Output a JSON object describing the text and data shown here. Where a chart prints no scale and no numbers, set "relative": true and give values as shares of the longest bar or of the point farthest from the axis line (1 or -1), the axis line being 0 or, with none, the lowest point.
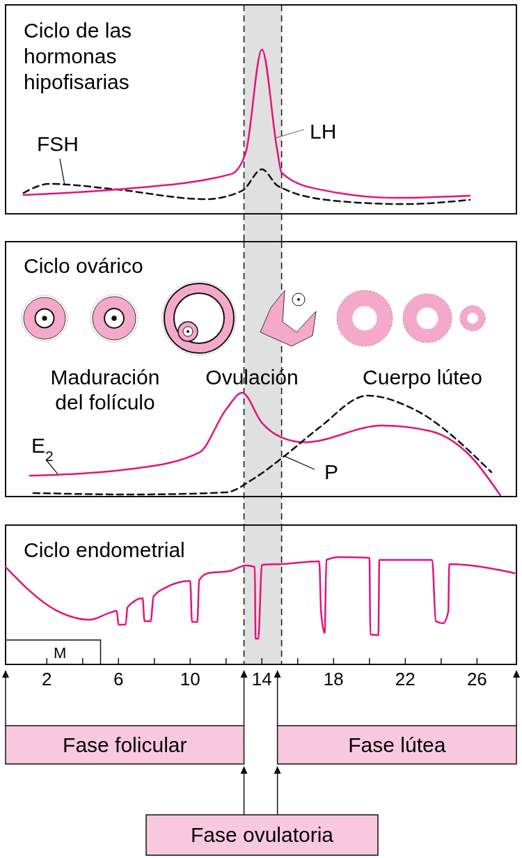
{
  "chart_data": [
    {
      "type": "line",
      "title": "Ciclo de las hormonas hipofisarias",
      "relative": true,
      "xlim": [
        -0.3,
        28.2
      ],
      "grid": false,
      "series": [
        {
          "name": "FSH",
          "color": "#111111",
          "line_style": "dashed",
          "x": [
            0.7,
            2.15,
            5.9,
            10.85,
            12.9,
            14,
            14.9,
            17.9,
            21.9,
            25.6
          ],
          "values": [
            0.127,
            0.182,
            0.148,
            0.089,
            0.14,
            0.271,
            0.169,
            0.081,
            0.059,
            0.085
          ]
        },
        {
          "name": "LH",
          "color": "#e5127d",
          "line_style": "solid",
          "x": [
            0.7,
            5.9,
            12.3,
            13.1,
            14,
            14.85,
            15.1,
            17,
            21.6,
            25.6
          ],
          "values": [
            0.114,
            0.148,
            0.242,
            0.373,
            1,
            0.39,
            0.25,
            0.153,
            0.097,
            0.11
          ]
        }
      ],
      "bands": [
        {
          "axis": "x",
          "from": 13,
          "to": 15.1,
          "color": "#e0e0e0"
        }
      ],
      "ref_lines": [
        {
          "axis": "x",
          "value": 13,
          "line_style": "dashed"
        },
        {
          "axis": "x",
          "value": 15.1,
          "line_style": "dashed"
        }
      ]
    },
    {
      "type": "line",
      "title": "Ciclo ovárico",
      "relative": true,
      "xlim": [
        -0.3,
        28.2
      ],
      "grid": false,
      "series": [
        {
          "name": "E$_{2}$",
          "color": "#e5127d",
          "line_style": "solid",
          "x": [
            1.05,
            6.8,
            10.5,
            12,
            12.9,
            14,
            15.1,
            16.4,
            20.7,
            23.4,
            25.6,
            27.3
          ],
          "values": [
            0.201,
            0.268,
            0.423,
            0.839,
            1,
            0.711,
            0.57,
            0.523,
            0.685,
            0.631,
            0.396,
            0.013
          ]
        },
        {
          "name": "P",
          "color": "#111111",
          "line_style": "dashed",
          "x": [
            1.25,
            6.8,
            12,
            13.5,
            15.3,
            17.2,
            19.9,
            22.5,
            26.8
          ],
          "values": [
            0.034,
            0.02,
            0.04,
            0.168,
            0.396,
            0.664,
            0.973,
            0.839,
            0.235
          ]
        }
      ],
      "annotations": [
        "Maduración del folículo",
        "Ovulación",
        "Cuerpo lúteo"
      ],
      "bands": [
        {
          "axis": "x",
          "from": 13,
          "to": 15.1,
          "color": "#e0e0e0"
        }
      ],
      "ref_lines": [
        {
          "axis": "x",
          "value": 13,
          "line_style": "dashed"
        },
        {
          "axis": "x",
          "value": 15.1,
          "line_style": "dashed"
        }
      ]
    },
    {
      "type": "line",
      "title": "Ciclo endometrial",
      "relative": true,
      "xlim": [
        -0.3,
        28.2
      ],
      "grid": false,
      "xticks": [
        2,
        {
          "value": 4,
          "label": null
        },
        6,
        {
          "value": 8,
          "label": null
        },
        10,
        {
          "value": 12,
          "label": null
        },
        14,
        {
          "value": 16,
          "label": null
        },
        18,
        {
          "value": 20,
          "label": null
        },
        22,
        {
          "value": 24,
          "label": null
        },
        26
      ],
      "series": [
        {
          "color": "#e5127d",
          "line_style": "solid",
          "x": [
            -0.3,
            2.5,
            4.4,
            5.5,
            5.9,
            6.0,
            6.4,
            6.5,
            7.35,
            7.45,
            7.8,
            7.95,
            8.6,
            10.0,
            10.1,
            10.4,
            10.5,
            11,
            12.2,
            13.1,
            13.6,
            13.65,
            13.8,
            14,
            15.1,
            17.2,
            17.3,
            17.5,
            17.6,
            18.3,
            20.0,
            20.05,
            20.5,
            20.55,
            23.5,
            23.7,
            24.1,
            24.4,
            24.45,
            28.1
          ],
          "values": [
            0.909,
            0.506,
            0.416,
            0.481,
            0.5,
            0.37,
            0.37,
            0.532,
            0.617,
            0.403,
            0.403,
            0.63,
            0.714,
            0.779,
            0.396,
            0.396,
            0.786,
            0.851,
            0.87,
            0.922,
            0.909,
            0.24,
            0.24,
            0.929,
            0.935,
            0.961,
            0.494,
            0.292,
            0.974,
            1,
            0.994,
            0.279,
            0.273,
            0.974,
            0.974,
            0.403,
            0.383,
            0.494,
            0.935,
            0.851
          ]
        }
      ],
      "annotations": [
        "Fase folicular",
        "Fase lútea",
        "Fase ovulatoria"
      ],
      "bands": [
        {
          "axis": "x",
          "from": 13,
          "to": 15.1,
          "color": "#e0e0e0"
        },
        {
          "axis": "x",
          "from": -0.3,
          "to": 5,
          "label": "M",
          "color": "#ffffff"
        }
      ],
      "ref_lines": [
        {
          "axis": "x",
          "value": 13,
          "line_style": "dashed"
        },
        {
          "axis": "x",
          "value": 15.1,
          "line_style": "dashed"
        }
      ]
    }
  ]
}
